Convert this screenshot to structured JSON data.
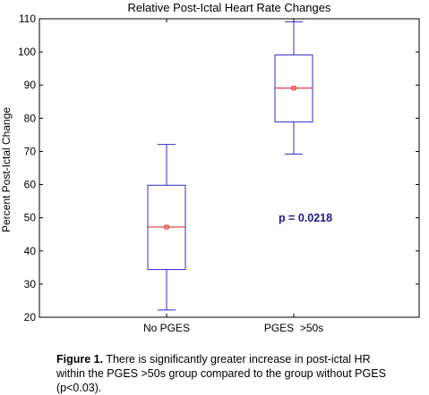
{
  "chart_data": {
    "type": "box",
    "title": "Relative Post-Ictal Heart Rate Changes",
    "xlabel": "",
    "ylabel": "Percent Post-Ictal Change",
    "ylim": [
      20,
      110
    ],
    "yticks": [
      20,
      30,
      40,
      50,
      60,
      70,
      80,
      90,
      100,
      110
    ],
    "categories": [
      "No PGES",
      "PGES  >50s"
    ],
    "boxes": [
      {
        "category": "No PGES",
        "whisker_low": 22.2,
        "q1": 34.4,
        "median": 47.2,
        "mean": 47.2,
        "q3": 59.8,
        "whisker_high": 72.1
      },
      {
        "category": "PGES  >50s",
        "whisker_low": 69.2,
        "q1": 78.9,
        "median": 89.1,
        "mean": 89.1,
        "q3": 99.1,
        "whisker_high": 109.1
      }
    ],
    "annotation": "p = 0.0218",
    "grid": false,
    "colors": {
      "box": "#2c2cc8",
      "median": "#e02020",
      "mean_marker": "#e02020",
      "annotation": "#1a1a8c",
      "axis": "#000000"
    }
  },
  "caption": {
    "bold": "Figure 1.",
    "text": " There is significantly greater increase in post-ictal HR within the PGES >50s group compared to the group without PGES (p<0.03)."
  }
}
